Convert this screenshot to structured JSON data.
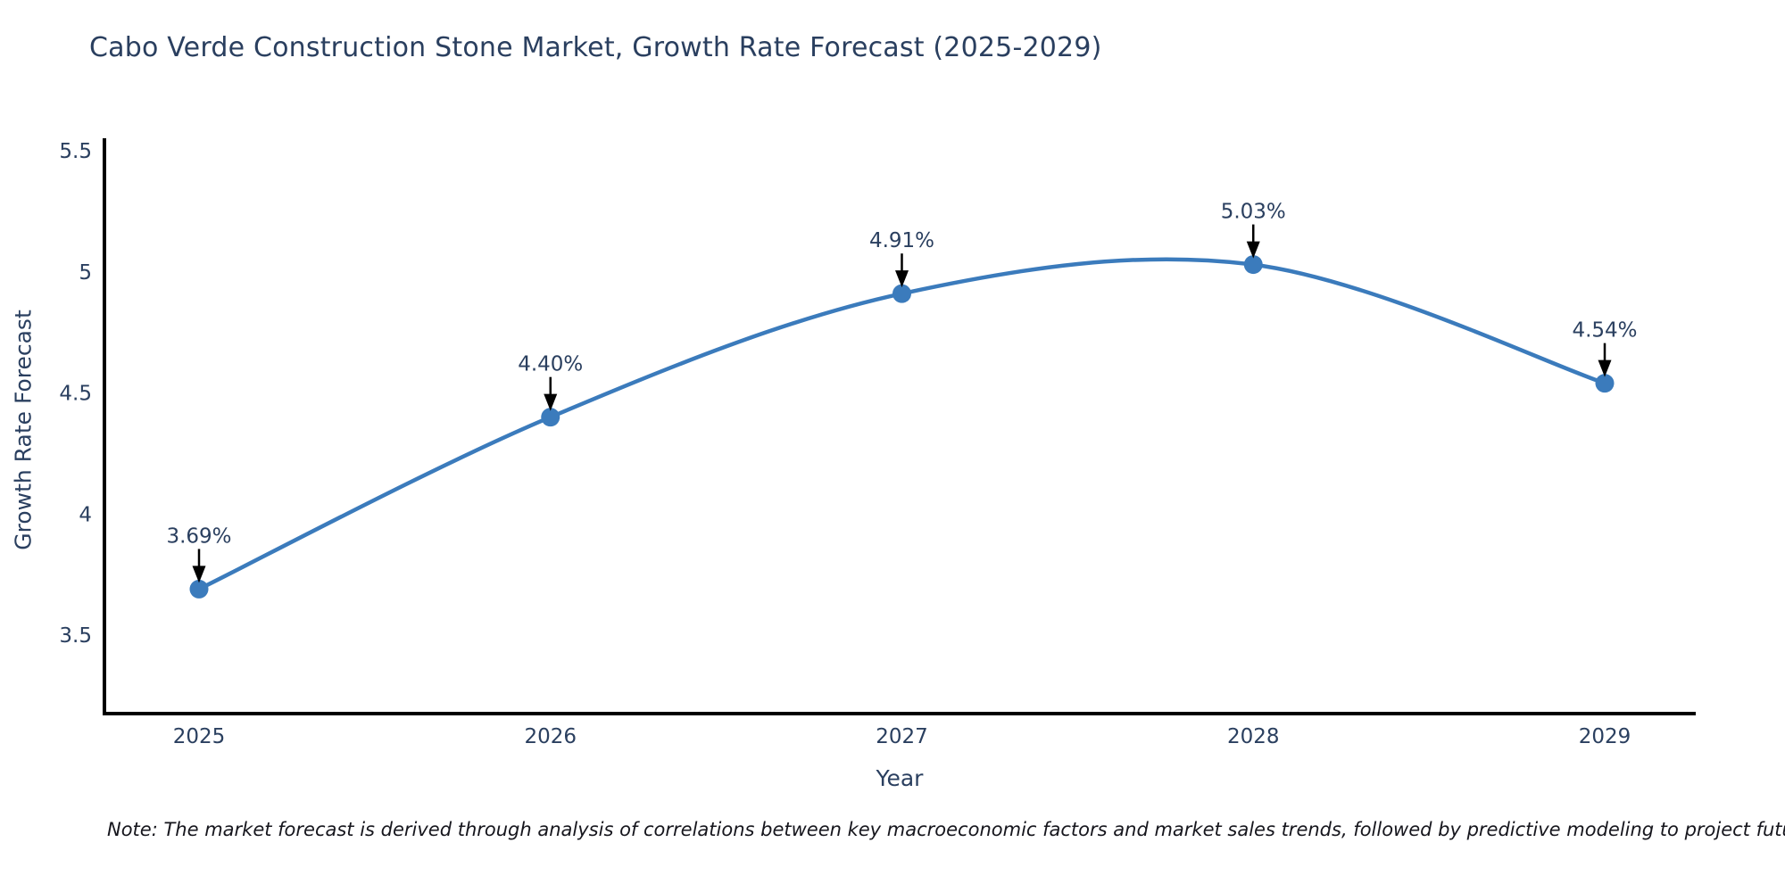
{
  "title": "Cabo Verde Construction Stone Market, Growth Rate Forecast (2025-2029)",
  "note": "Note: The market forecast is derived through analysis of correlations between key macroeconomic factors and market sales trends, followed by predictive modeling to project future sales",
  "chart_data": {
    "type": "line",
    "line_shape": "spline",
    "title": "Cabo Verde Construction Stone Market, Growth Rate Forecast (2025-2029)",
    "xlabel": "Year",
    "ylabel": "Growth Rate Forecast",
    "x": [
      2025,
      2026,
      2027,
      2028,
      2029
    ],
    "values": [
      3.69,
      4.4,
      4.91,
      5.03,
      4.54
    ],
    "point_labels": [
      "3.69%",
      "4.40%",
      "4.91%",
      "5.03%",
      "4.54%"
    ],
    "x_tick_labels": [
      "2025",
      "2026",
      "2027",
      "2028",
      "2029"
    ],
    "y_tick_values": [
      5.5,
      5,
      4.5,
      4,
      3.5
    ],
    "y_tick_labels": [
      "5.5",
      "5",
      "4.5",
      "4",
      "3.5"
    ],
    "ylim": [
      3.18,
      5.55
    ],
    "xlim": [
      2024.73,
      2029.26
    ],
    "grid": false,
    "legend": "none",
    "annotations": "down-arrow percentage labels above each marker",
    "colors": {
      "line": "#3b7bbc",
      "marker": "#3b7bbc",
      "axis": "#000000",
      "tick_text": "#2a3f5f",
      "title_text": "#2a3f5f",
      "annotation_text": "#2a3f5f",
      "arrow": "#000000",
      "background": "#ffffff"
    }
  }
}
